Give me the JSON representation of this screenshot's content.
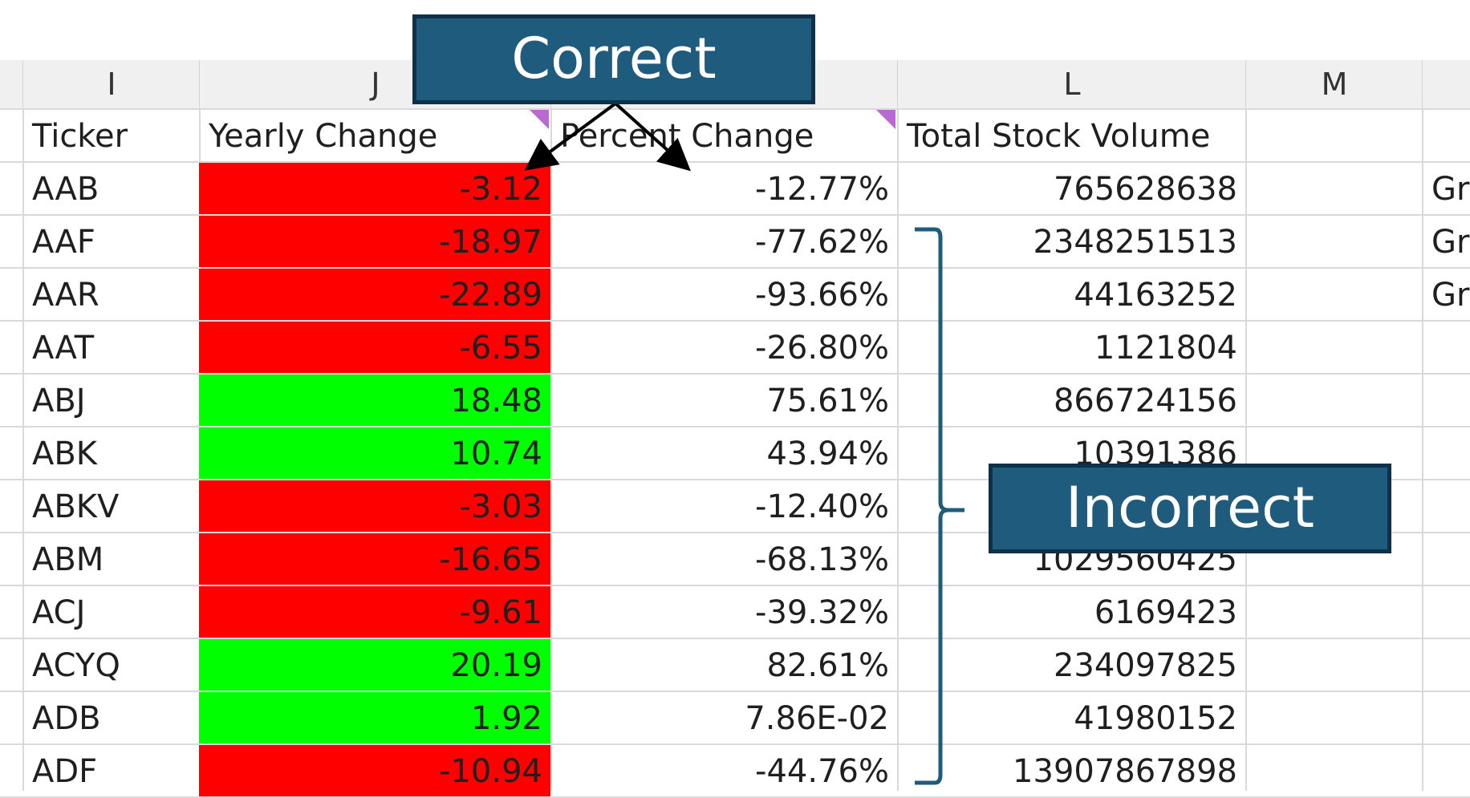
{
  "columns": [
    "I",
    "J",
    "L",
    "M"
  ],
  "headers": {
    "ticker": "Ticker",
    "yearly_change": "Yearly Change",
    "percent_change": "Percent Change",
    "total_volume": "Total Stock Volume"
  },
  "rows": [
    {
      "ticker": "AAB",
      "yearly": "-3.12",
      "percent": "-12.77%",
      "volume": "765628638",
      "n": "Gr",
      "fill": "neg"
    },
    {
      "ticker": "AAF",
      "yearly": "-18.97",
      "percent": "-77.62%",
      "volume": "2348251513",
      "n": "Gr",
      "fill": "neg"
    },
    {
      "ticker": "AAR",
      "yearly": "-22.89",
      "percent": "-93.66%",
      "volume": "44163252",
      "n": "Gr",
      "fill": "neg"
    },
    {
      "ticker": "AAT",
      "yearly": "-6.55",
      "percent": "-26.80%",
      "volume": "1121804",
      "n": "",
      "fill": "neg"
    },
    {
      "ticker": "ABJ",
      "yearly": "18.48",
      "percent": "75.61%",
      "volume": "866724156",
      "n": "",
      "fill": "pos"
    },
    {
      "ticker": "ABK",
      "yearly": "10.74",
      "percent": "43.94%",
      "volume": "10391386",
      "n": "",
      "fill": "pos"
    },
    {
      "ticker": "ABKV",
      "yearly": "-3.03",
      "percent": "-12.40%",
      "volume": "",
      "n": "",
      "fill": "neg"
    },
    {
      "ticker": "ABM",
      "yearly": "-16.65",
      "percent": "-68.13%",
      "volume": "1029560425",
      "n": "",
      "fill": "neg"
    },
    {
      "ticker": "ACJ",
      "yearly": "-9.61",
      "percent": "-39.32%",
      "volume": "6169423",
      "n": "",
      "fill": "neg"
    },
    {
      "ticker": "ACYQ",
      "yearly": "20.19",
      "percent": "82.61%",
      "volume": "234097825",
      "n": "",
      "fill": "pos"
    },
    {
      "ticker": "ADB",
      "yearly": "1.92",
      "percent": "7.86E-02",
      "volume": "41980152",
      "n": "",
      "fill": "pos"
    },
    {
      "ticker": "ADF",
      "yearly": "-10.94",
      "percent": "-44.76%",
      "volume": "13907867898",
      "n": "",
      "fill": "neg"
    }
  ],
  "callouts": {
    "correct": "Correct",
    "incorrect": "Incorrect"
  },
  "colors": {
    "negative_fill": "#ff0000",
    "positive_fill": "#00ff00",
    "callout_bg": "#1e5b7d",
    "callout_border": "#0f3148",
    "bracket": "#1e5b7d",
    "comment_marker": "#b96ad2"
  }
}
